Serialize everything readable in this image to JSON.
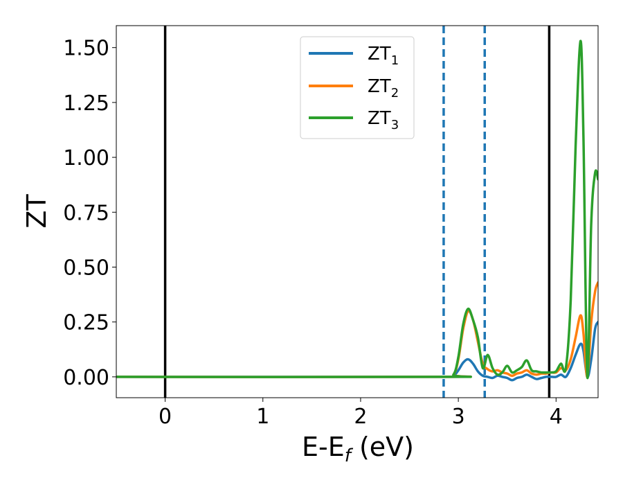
{
  "chart_data": {
    "type": "line",
    "xlabel": "E-E",
    "xlabel_sub": "f",
    "xlabel_unit": "(eV)",
    "ylabel": "ZT",
    "xlim": [
      -0.5,
      4.43
    ],
    "ylim": [
      -0.095,
      1.6
    ],
    "xticks": [
      0,
      1,
      2,
      3,
      4
    ],
    "xtick_labels": [
      "0",
      "1",
      "2",
      "3",
      "4"
    ],
    "yticks": [
      0.0,
      0.25,
      0.5,
      0.75,
      1.0,
      1.25,
      1.5
    ],
    "ytick_labels": [
      "0.00",
      "0.25",
      "0.50",
      "0.75",
      "1.00",
      "1.25",
      "1.50"
    ],
    "grid": false,
    "legend_position": "top-center",
    "vertical_lines": [
      {
        "x": 0.0,
        "style": "solid",
        "color": "#000000"
      },
      {
        "x": 3.93,
        "style": "solid",
        "color": "#000000"
      },
      {
        "x": 2.85,
        "style": "dashed",
        "color": "#1f77b4"
      },
      {
        "x": 3.27,
        "style": "dashed",
        "color": "#1f77b4"
      }
    ],
    "series": [
      {
        "name": "ZT",
        "name_sub": "1",
        "color": "#1f77b4",
        "x": [
          -0.5,
          2.85,
          2.95,
          3.0,
          3.05,
          3.1,
          3.15,
          3.2,
          3.25,
          3.3,
          3.35,
          3.4,
          3.45,
          3.5,
          3.55,
          3.6,
          3.65,
          3.7,
          3.75,
          3.8,
          3.85,
          3.9,
          3.95,
          4.0,
          4.05,
          4.1,
          4.15,
          4.2,
          4.25,
          4.28,
          4.32,
          4.36,
          4.4,
          4.43
        ],
        "y": [
          0.0,
          0.0,
          0.005,
          0.03,
          0.065,
          0.08,
          0.06,
          0.025,
          0.005,
          0.0,
          -0.005,
          0.005,
          0.0,
          -0.005,
          -0.015,
          -0.005,
          0.0,
          0.01,
          0.0,
          -0.01,
          -0.005,
          0.0,
          0.0,
          0.0,
          0.01,
          0.0,
          0.04,
          0.1,
          0.15,
          0.12,
          0.0,
          0.08,
          0.22,
          0.25
        ]
      },
      {
        "name": "ZT",
        "name_sub": "2",
        "color": "#ff7f0e",
        "x": [
          -0.5,
          2.85,
          2.95,
          3.0,
          3.05,
          3.1,
          3.15,
          3.2,
          3.25,
          3.3,
          3.35,
          3.4,
          3.45,
          3.5,
          3.55,
          3.6,
          3.65,
          3.7,
          3.75,
          3.8,
          3.85,
          3.9,
          3.95,
          4.0,
          4.05,
          4.1,
          4.15,
          4.2,
          4.25,
          4.28,
          4.32,
          4.36,
          4.4,
          4.43
        ],
        "y": [
          0.0,
          0.0,
          0.01,
          0.08,
          0.22,
          0.3,
          0.26,
          0.16,
          0.06,
          0.035,
          0.025,
          0.03,
          0.02,
          0.015,
          0.005,
          0.015,
          0.02,
          0.03,
          0.015,
          0.01,
          0.015,
          0.015,
          0.02,
          0.02,
          0.04,
          0.03,
          0.08,
          0.18,
          0.28,
          0.2,
          0.0,
          0.25,
          0.39,
          0.43
        ]
      },
      {
        "name": "ZT",
        "name_sub": "3",
        "color": "#2ca02c",
        "x": [
          -0.5,
          2.85,
          2.95,
          3.0,
          3.05,
          3.1,
          3.15,
          3.2,
          3.25,
          3.3,
          3.35,
          3.4,
          3.45,
          3.5,
          3.55,
          3.6,
          3.65,
          3.7,
          3.75,
          3.8,
          3.85,
          3.9,
          3.95,
          4.0,
          4.05,
          4.1,
          4.15,
          4.2,
          4.25,
          4.28,
          4.32,
          4.36,
          4.4,
          4.43
        ],
        "y": [
          0.0,
          0.0,
          0.01,
          0.09,
          0.24,
          0.31,
          0.26,
          0.18,
          0.04,
          0.1,
          0.04,
          0.01,
          0.02,
          0.05,
          0.02,
          0.03,
          0.045,
          0.075,
          0.03,
          0.025,
          0.02,
          0.02,
          0.02,
          0.025,
          0.06,
          0.04,
          0.35,
          1.05,
          1.53,
          1.1,
          0.0,
          0.7,
          0.93,
          0.9
        ]
      }
    ]
  }
}
